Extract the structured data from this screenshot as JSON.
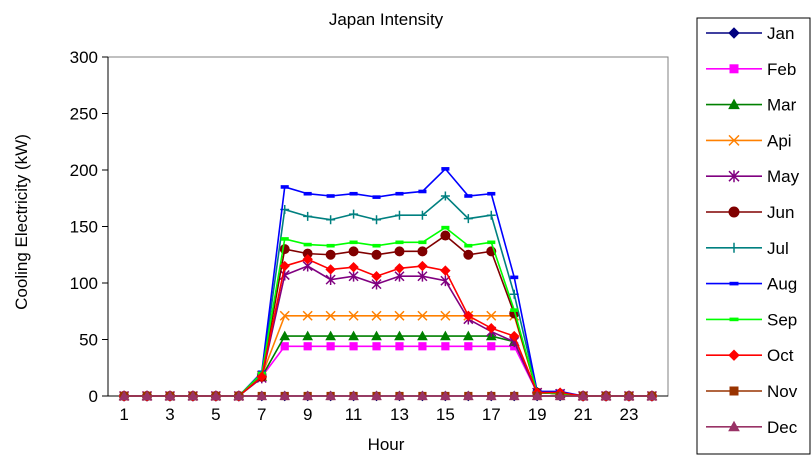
{
  "chart_data": {
    "type": "line",
    "title": "Japan Intensity",
    "xlabel": "Hour",
    "ylabel": "Cooling Electricity (kW)",
    "ylim": [
      0,
      300
    ],
    "yticks": [
      0,
      50,
      100,
      150,
      200,
      250,
      300
    ],
    "xlim": [
      0.3,
      24.7
    ],
    "xticks": [
      1,
      3,
      5,
      7,
      9,
      11,
      13,
      15,
      17,
      19,
      21,
      23
    ],
    "grid": false,
    "legend_position": "right",
    "x": [
      1,
      2,
      3,
      4,
      5,
      6,
      7,
      8,
      9,
      10,
      11,
      12,
      13,
      14,
      15,
      16,
      17,
      18,
      19,
      20,
      21,
      22,
      23,
      24
    ],
    "series": [
      {
        "name": "Jan",
        "color": "#000080",
        "marker": "diamond",
        "values": [
          0,
          0,
          0,
          0,
          0,
          0,
          0,
          0,
          0,
          0,
          0,
          0,
          0,
          0,
          0,
          0,
          0,
          0,
          0,
          0,
          0,
          0,
          0,
          0
        ]
      },
      {
        "name": "Feb",
        "color": "#FF00FF",
        "marker": "square",
        "values": [
          0,
          0,
          0,
          0,
          0,
          0,
          17,
          44,
          44,
          44,
          44,
          44,
          44,
          44,
          44,
          44,
          44,
          44,
          3,
          2,
          0,
          0,
          0,
          0
        ]
      },
      {
        "name": "Mar",
        "color": "#008000",
        "marker": "triangle",
        "values": [
          0,
          0,
          0,
          0,
          0,
          0,
          17,
          53,
          53,
          53,
          53,
          53,
          53,
          53,
          53,
          53,
          53,
          48,
          3,
          2,
          0,
          0,
          0,
          0
        ]
      },
      {
        "name": "Api",
        "color": "#FF8000",
        "marker": "x",
        "values": [
          0,
          0,
          0,
          0,
          0,
          0,
          18,
          71,
          71,
          71,
          71,
          71,
          71,
          71,
          71,
          71,
          71,
          71,
          3,
          2,
          0,
          0,
          0,
          0
        ]
      },
      {
        "name": "May",
        "color": "#800080",
        "marker": "star",
        "values": [
          0,
          0,
          0,
          0,
          0,
          0,
          16,
          107,
          115,
          103,
          106,
          99,
          106,
          106,
          102,
          68,
          57,
          48,
          3,
          2,
          0,
          0,
          0,
          0
        ]
      },
      {
        "name": "Jun",
        "color": "#800000",
        "marker": "circle",
        "values": [
          0,
          0,
          0,
          0,
          0,
          0,
          17,
          130,
          126,
          125,
          128,
          125,
          128,
          128,
          142,
          125,
          128,
          73,
          3,
          2,
          0,
          0,
          0,
          0
        ]
      },
      {
        "name": "Jul",
        "color": "#008080",
        "marker": "plus",
        "values": [
          0,
          0,
          0,
          0,
          0,
          0,
          18,
          165,
          159,
          156,
          161,
          156,
          160,
          160,
          177,
          157,
          160,
          90,
          4,
          3,
          0,
          0,
          0,
          0
        ]
      },
      {
        "name": "Aug",
        "color": "#0000FF",
        "marker": "dash",
        "values": [
          0,
          0,
          0,
          0,
          0,
          0,
          21,
          185,
          179,
          177,
          179,
          176,
          179,
          181,
          201,
          177,
          179,
          105,
          4,
          4,
          0,
          0,
          0,
          0
        ]
      },
      {
        "name": "Sep",
        "color": "#00FF00",
        "marker": "dash",
        "values": [
          0,
          0,
          0,
          0,
          0,
          0,
          20,
          139,
          134,
          133,
          136,
          133,
          136,
          136,
          149,
          133,
          136,
          76,
          3,
          2,
          0,
          0,
          0,
          0
        ]
      },
      {
        "name": "Oct",
        "color": "#FF0000",
        "marker": "diamond",
        "values": [
          0,
          0,
          0,
          0,
          0,
          0,
          17,
          115,
          121,
          112,
          114,
          106,
          113,
          115,
          111,
          71,
          60,
          53,
          3,
          3,
          0,
          0,
          0,
          0
        ]
      },
      {
        "name": "Nov",
        "color": "#993300",
        "marker": "square",
        "values": [
          0,
          0,
          0,
          0,
          0,
          0,
          0,
          0,
          0,
          0,
          0,
          0,
          0,
          0,
          0,
          0,
          0,
          0,
          0,
          0,
          0,
          0,
          0,
          0
        ]
      },
      {
        "name": "Dec",
        "color": "#993366",
        "marker": "triangle",
        "values": [
          0,
          0,
          0,
          0,
          0,
          0,
          0,
          0,
          0,
          0,
          0,
          0,
          0,
          0,
          0,
          0,
          0,
          0,
          0,
          0,
          0,
          0,
          0,
          0
        ]
      }
    ]
  }
}
